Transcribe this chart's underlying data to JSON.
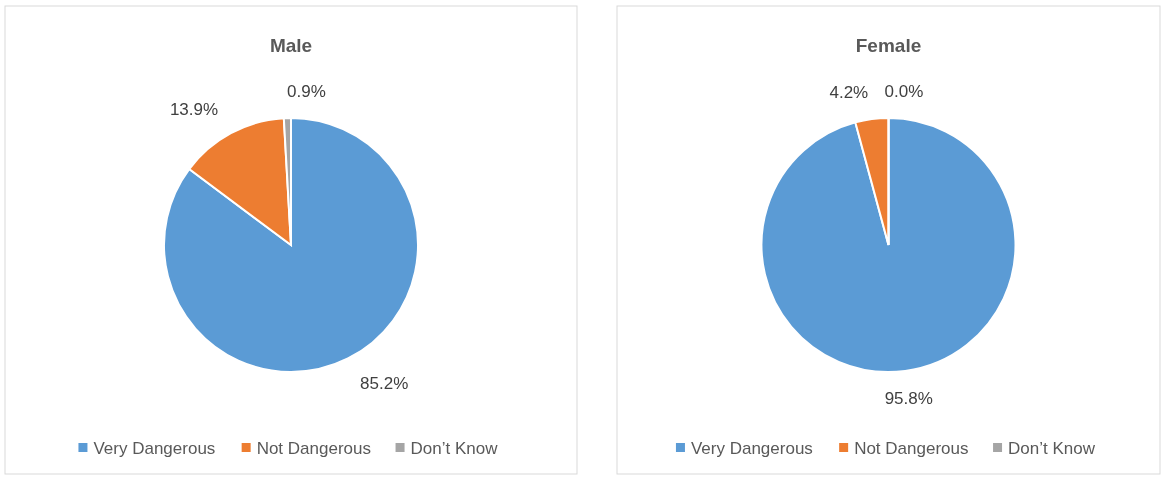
{
  "chart_data": [
    {
      "type": "pie",
      "title": "Male",
      "categories": [
        "Very Dangerous",
        "Not Dangerous",
        "Don’t Know"
      ],
      "values": [
        85.2,
        13.9,
        0.9
      ],
      "colors": [
        "#5b9bd5",
        "#ed7d31",
        "#a5a5a5"
      ],
      "data_labels": true,
      "value_labels": [
        "85.2%",
        "13.9%",
        "0.9%"
      ],
      "legend": "bottom"
    },
    {
      "type": "pie",
      "title": "Female",
      "categories": [
        "Very Dangerous",
        "Not Dangerous",
        "Don’t Know"
      ],
      "values": [
        95.8,
        4.2,
        0.0
      ],
      "colors": [
        "#5b9bd5",
        "#ed7d31",
        "#a5a5a5"
      ],
      "data_labels": true,
      "value_labels": [
        "95.8%",
        "4.2%",
        "0.0%"
      ],
      "legend": "bottom"
    }
  ]
}
